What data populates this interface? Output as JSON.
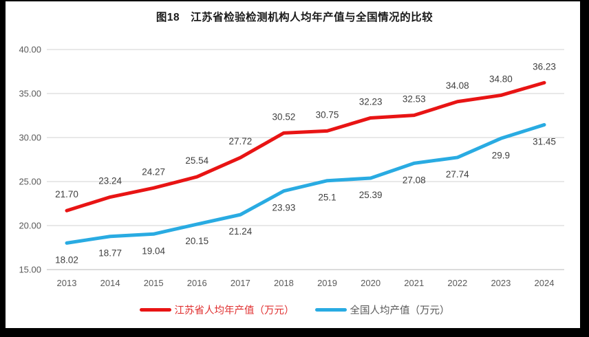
{
  "title": "图18　江苏省检验检测机构人均年产值与全国情况的比较",
  "legend": [
    {
      "label": "江苏省人均年产值（万元）",
      "color": "#e81414",
      "text_color": "#e03030"
    },
    {
      "label": "全国人均产值（万元）",
      "color": "#29abe2",
      "text_color": "#595959"
    }
  ],
  "chart_data": {
    "type": "line",
    "title": "图18 江苏省检验检测机构人均年产值与全国情况的比较",
    "categories": [
      "2013",
      "2014",
      "2015",
      "2016",
      "2017",
      "2018",
      "2019",
      "2020",
      "2021",
      "2022",
      "2023",
      "2024"
    ],
    "series": [
      {
        "name": "江苏省人均年产值（万元）",
        "key": "jiangsu",
        "color": "#e81414",
        "values": [
          21.7,
          23.24,
          24.27,
          25.54,
          27.72,
          30.52,
          30.75,
          32.23,
          32.53,
          34.08,
          34.8,
          36.23
        ],
        "labels": [
          "21.70",
          "23.24",
          "24.27",
          "25.54",
          "27.72",
          "30.52",
          "30.75",
          "32.23",
          "32.53",
          "34.08",
          "34.80",
          "36.23"
        ],
        "label_position": "above"
      },
      {
        "name": "全国人均产值（万元）",
        "key": "national",
        "color": "#29abe2",
        "values": [
          18.02,
          18.77,
          19.04,
          20.15,
          21.24,
          23.93,
          25.1,
          25.39,
          27.08,
          27.74,
          29.9,
          31.45
        ],
        "labels": [
          "18.02",
          "18.77",
          "19.04",
          "20.15",
          "21.24",
          "23.93",
          "25.1",
          "25.39",
          "27.08",
          "27.74",
          "29.9",
          "31.45"
        ],
        "label_position": "below"
      }
    ],
    "xlabel": "",
    "ylabel": "",
    "ylim": [
      15,
      40
    ],
    "y_ticks": [
      "40.00",
      "35.00",
      "30.00",
      "25.00",
      "20.00",
      "15.00"
    ],
    "grid": true,
    "legend_position": "bottom",
    "grid_color": "#d9d9d9",
    "axis_color": "#c6c6c6",
    "tick_color": "#595959",
    "label_color": "#3f3f3f"
  }
}
